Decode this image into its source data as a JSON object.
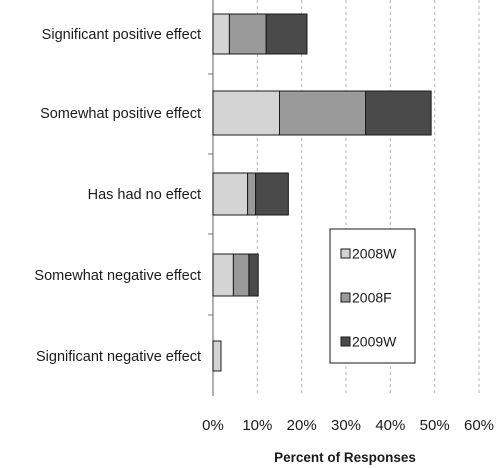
{
  "chart_data": {
    "type": "bar",
    "orientation": "horizontal",
    "stacked": true,
    "title": "",
    "xlabel": "Percent of Responses",
    "ylabel": "",
    "xlim": [
      0,
      60
    ],
    "x_ticks": [
      "0%",
      "10%",
      "20%",
      "30%",
      "40%",
      "50%",
      "60%"
    ],
    "grid": "vertical dashed",
    "legend_position": "bottom-right inside plot",
    "categories": [
      "Significant positive effect",
      "Somewhat positive effect",
      "Has had no effect",
      "Somewhat negative effect",
      "Significant negative effect"
    ],
    "series": [
      {
        "name": "2008W",
        "color": "#d4d4d4",
        "values": [
          3.7,
          15.0,
          7.8,
          4.6,
          1.8
        ]
      },
      {
        "name": "2008F",
        "color": "#9a9a9a",
        "values": [
          8.3,
          19.4,
          1.8,
          3.5,
          0.0
        ]
      },
      {
        "name": "2009W",
        "color": "#4a4a4a",
        "values": [
          9.2,
          14.8,
          7.4,
          2.1,
          0.0
        ]
      }
    ]
  }
}
